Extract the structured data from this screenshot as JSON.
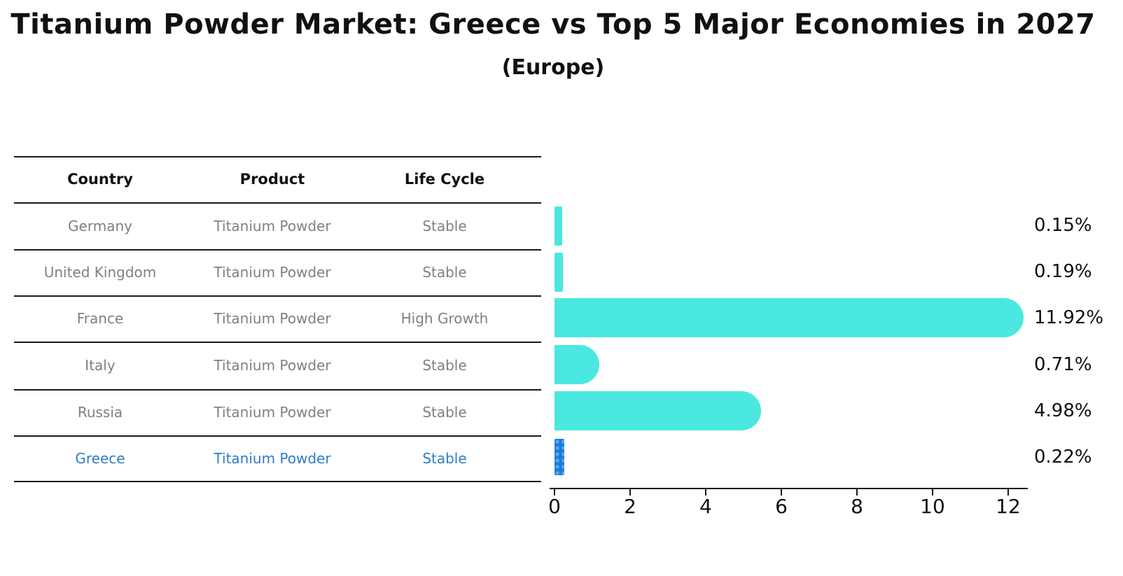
{
  "title": "Titanium Powder Market: Greece vs Top 5 Major Economies in 2027",
  "subtitle": "(Europe)",
  "table": {
    "headers": {
      "country": "Country",
      "product": "Product",
      "life_cycle": "Life Cycle"
    },
    "rows": [
      {
        "country": "Germany",
        "product": "Titanium Powder",
        "life_cycle": "Stable",
        "highlight": false
      },
      {
        "country": "United Kingdom",
        "product": "Titanium Powder",
        "life_cycle": "Stable",
        "highlight": false
      },
      {
        "country": "France",
        "product": "Titanium Powder",
        "life_cycle": "High Growth",
        "highlight": false
      },
      {
        "country": "Italy",
        "product": "Titanium Powder",
        "life_cycle": "Stable",
        "highlight": false
      },
      {
        "country": "Russia",
        "product": "Titanium Powder",
        "life_cycle": "Stable",
        "highlight": true
      }
    ],
    "highlight_row": {
      "country": "Greece",
      "product": "Titanium Powder",
      "life_cycle": "Stable"
    }
  },
  "chart_data": {
    "type": "bar",
    "orientation": "horizontal",
    "title": "Titanium Powder Market: Greece vs Top 5 Major Economies in 2027 (Europe)",
    "categories": [
      "Germany",
      "United Kingdom",
      "France",
      "Italy",
      "Russia",
      "Greece"
    ],
    "values": [
      0.15,
      0.19,
      11.92,
      0.71,
      4.98,
      0.22
    ],
    "value_labels": [
      "0.15%",
      "0.19%",
      "11.92%",
      "0.71%",
      "4.98%",
      "0.22%"
    ],
    "units": "percent",
    "xlim": [
      0,
      12.5
    ],
    "x_ticks": [
      0,
      2,
      4,
      6,
      8,
      10,
      12
    ],
    "grid": false,
    "legend": "none",
    "bar_color": "#4ae8e0",
    "highlight_bar_color": "#1e7bd7",
    "highlight_index": 5
  },
  "colors": {
    "row_text": "#808080",
    "highlight_text": "#2e7ec6",
    "header_text": "#111111",
    "line": "#1a1a1a"
  }
}
